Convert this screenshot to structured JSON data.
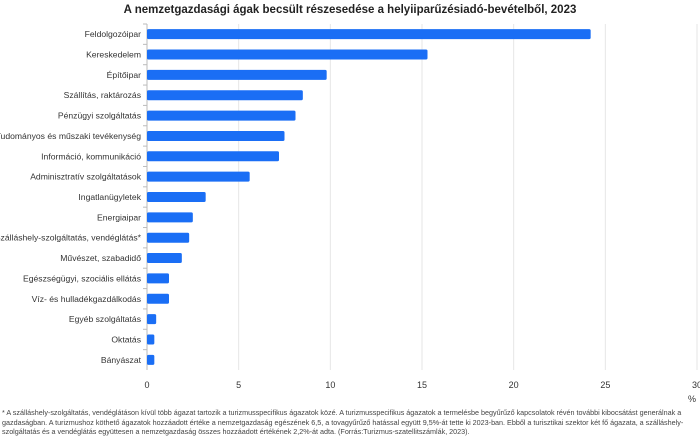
{
  "chart_data": {
    "type": "bar",
    "orientation": "horizontal",
    "title": "A nemzetgazdasági ágak becsült részesedése a helyiiparűzésiadó-bevételből, 2023",
    "xlabel": "%",
    "xlim": [
      0,
      30
    ],
    "xticks": [
      0,
      5,
      10,
      15,
      20,
      25,
      30
    ],
    "grid": true,
    "bar_color": "#1a6ef5",
    "categories": [
      "Feldolgozóipar",
      "Kereskedelem",
      "Építőipar",
      "Szállítás, raktározás",
      "Pénzügyi szolgáltatás",
      "Tudományos és műszaki tevékenység",
      "Információ, kommunikáció",
      "Adminisztratív szolgáltatások",
      "Ingatlanügyletek",
      "Energiaipar",
      "Szálláshely-szolgáltatás, vendéglátás*",
      "Művészet, szabadidő",
      "Egészségügyi, szociális ellátás",
      "Víz- és hulladékgazdálkodás",
      "Egyéb szolgáltatás",
      "Oktatás",
      "Bányászat"
    ],
    "values": [
      24.2,
      15.3,
      9.8,
      8.5,
      8.1,
      7.5,
      7.2,
      5.6,
      3.2,
      2.5,
      2.3,
      1.9,
      1.2,
      1.2,
      0.5,
      0.4,
      0.4
    ]
  },
  "footnote": "* A szálláshely-szolgáltatás, vendéglátáson kívül több ágazat tartozik a turizmusspecifikus ágazatok közé. A turizmusspecifikus ágazatok a termelésbe begyűrűző kapcsolatok révén további kibocsátást generálnak a gazdaságban. A turizmushoz köthető ágazatok hozzáadott értéke a nemzetgazdaság egészének 6,5, a tovagyűrűző hatással együtt 9,5%-át tette ki 2023-ban. Ebből a turisztikai szektor két fő ágazata, a szálláshely-szolgáltatás és a vendéglátás együttesen a nemzetgazdaság összes hozzáadott értékének 2,2%-át adta. (Forrás:Turizmus-szatellitszámlák, 2023)."
}
